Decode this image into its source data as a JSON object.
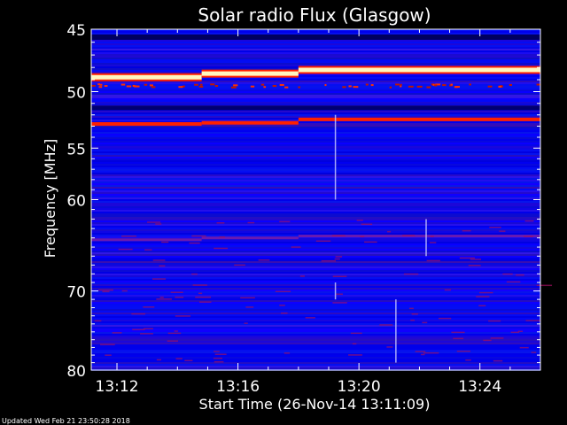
{
  "chart_data": {
    "type": "heatmap",
    "title": "Solar radio Flux (Glasgow)",
    "ylabel": "Frequency [MHz]",
    "xlabel": "Start Time (26-Nov-14 13:11:09)",
    "y_ticks": [
      "45",
      "50",
      "55",
      "60",
      "70",
      "80"
    ],
    "x_ticks": [
      "13:12",
      "13:16",
      "13:20",
      "13:24"
    ],
    "x_tick_minutes": [
      12,
      16,
      20,
      24
    ],
    "x_range_minutes": [
      11.15,
      26.0
    ],
    "y_range_mhz": [
      45,
      80
    ],
    "y_scale": "log",
    "colors": {
      "background": "#0000ff",
      "low": "#1a1ab8",
      "mid": "#6a1ab0",
      "high": "#ff2000",
      "max": "#fff8c0"
    },
    "emission_lines": [
      {
        "from_min": 11.15,
        "to_min": 14.8,
        "mhz": 48.8,
        "level": "max"
      },
      {
        "from_min": 14.8,
        "to_min": 18.0,
        "mhz": 48.5,
        "level": "max"
      },
      {
        "from_min": 18.0,
        "to_min": 26.0,
        "mhz": 48.2,
        "level": "max"
      },
      {
        "from_min": 11.15,
        "to_min": 14.8,
        "mhz": 52.8,
        "level": "high"
      },
      {
        "from_min": 14.8,
        "to_min": 18.0,
        "mhz": 52.7,
        "level": "high"
      },
      {
        "from_min": 18.0,
        "to_min": 26.0,
        "mhz": 52.4,
        "level": "high"
      },
      {
        "from_min": 11.15,
        "to_min": 14.8,
        "mhz": 64.2,
        "level": "mid"
      },
      {
        "from_min": 14.8,
        "to_min": 18.0,
        "mhz": 64.0,
        "level": "mid"
      },
      {
        "from_min": 18.0,
        "to_min": 26.0,
        "mhz": 63.8,
        "level": "mid"
      }
    ],
    "grid": false,
    "legend": "none"
  },
  "footer": {
    "updated": "Updated Wed Feb 21 23:50:28 2018"
  }
}
